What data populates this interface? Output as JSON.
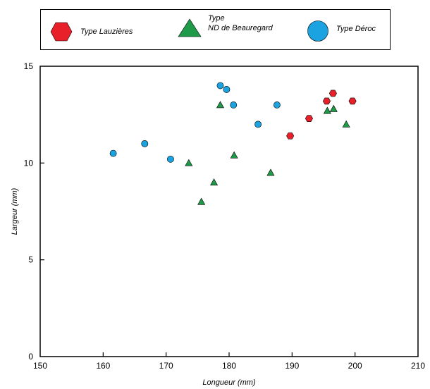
{
  "legend": {
    "items": [
      {
        "label": "Type Lauzières",
        "marker": "hexagon-icon",
        "color": "#e8202a"
      },
      {
        "label_line1": "Type",
        "label_line2": "ND de Beauregard",
        "marker": "triangle-icon",
        "color": "#1f9a48"
      },
      {
        "label": "Type Déroc",
        "marker": "circle-icon",
        "color": "#1aa3e0"
      }
    ]
  },
  "chart_data": {
    "type": "scatter",
    "xlabel": "Longueur (mm)",
    "ylabel": "Largeur (mm)",
    "xlim": [
      150,
      210
    ],
    "ylim": [
      0,
      15
    ],
    "x_ticks": [
      150,
      160,
      170,
      180,
      190,
      200,
      210
    ],
    "y_ticks": [
      0,
      5,
      10,
      15
    ],
    "grid": false,
    "legend_position": "top",
    "series": [
      {
        "name": "Type Lauzières",
        "marker": "hexagon",
        "color": "#e8202a",
        "points": [
          {
            "x": 189.7,
            "y": 11.4
          },
          {
            "x": 192.7,
            "y": 12.3
          },
          {
            "x": 195.5,
            "y": 13.2
          },
          {
            "x": 196.5,
            "y": 13.6
          },
          {
            "x": 199.6,
            "y": 13.2
          }
        ]
      },
      {
        "name": "Type ND de Beauregard",
        "marker": "triangle",
        "color": "#1f9a48",
        "points": [
          {
            "x": 173.6,
            "y": 10.0
          },
          {
            "x": 175.6,
            "y": 8.0
          },
          {
            "x": 177.6,
            "y": 9.0
          },
          {
            "x": 178.6,
            "y": 13.0
          },
          {
            "x": 180.8,
            "y": 10.4
          },
          {
            "x": 186.6,
            "y": 9.5
          },
          {
            "x": 195.6,
            "y": 12.7
          },
          {
            "x": 196.6,
            "y": 12.8
          },
          {
            "x": 198.6,
            "y": 12.0
          }
        ]
      },
      {
        "name": "Type Déroc",
        "marker": "circle",
        "color": "#1aa3e0",
        "points": [
          {
            "x": 161.6,
            "y": 10.5
          },
          {
            "x": 166.6,
            "y": 11.0
          },
          {
            "x": 170.7,
            "y": 10.2
          },
          {
            "x": 178.6,
            "y": 14.0
          },
          {
            "x": 179.6,
            "y": 13.8
          },
          {
            "x": 180.7,
            "y": 13.0
          },
          {
            "x": 184.6,
            "y": 12.0
          },
          {
            "x": 187.6,
            "y": 13.0
          }
        ]
      }
    ]
  }
}
